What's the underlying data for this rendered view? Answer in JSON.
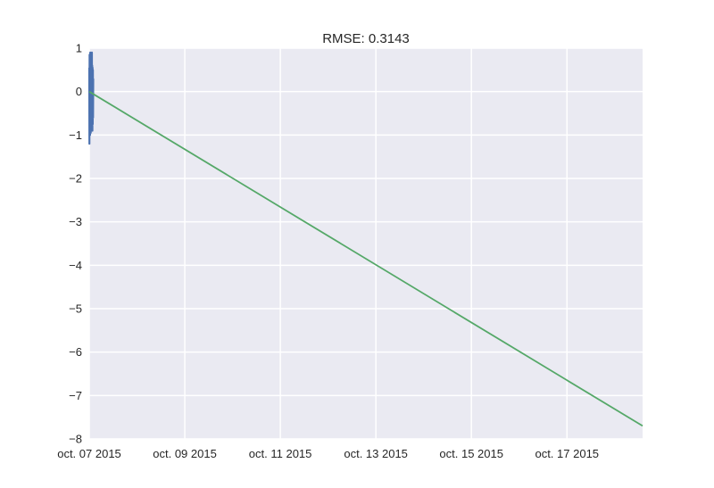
{
  "chart_data": {
    "type": "line",
    "title": "RMSE: 0.3143",
    "xlabel": "",
    "ylabel": "",
    "xlim": [
      "2015-10-07",
      "2015-10-18T14:00"
    ],
    "ylim": [
      -8,
      1
    ],
    "grid": true,
    "x_ticks": [
      {
        "date": "2015-10-07",
        "label": "oct. 07 2015"
      },
      {
        "date": "2015-10-09",
        "label": "oct. 09 2015"
      },
      {
        "date": "2015-10-11",
        "label": "oct. 11 2015"
      },
      {
        "date": "2015-10-13",
        "label": "oct. 13 2015"
      },
      {
        "date": "2015-10-15",
        "label": "oct. 15 2015"
      },
      {
        "date": "2015-10-17",
        "label": "oct. 17 2015"
      }
    ],
    "y_ticks": [
      {
        "value": 1,
        "label": "1"
      },
      {
        "value": 0,
        "label": "0"
      },
      {
        "value": -1,
        "label": "−1"
      },
      {
        "value": -2,
        "label": "−2"
      },
      {
        "value": -3,
        "label": "−3"
      },
      {
        "value": -4,
        "label": "−4"
      },
      {
        "value": -5,
        "label": "−5"
      },
      {
        "value": -6,
        "label": "−6"
      },
      {
        "value": -7,
        "label": "−7"
      },
      {
        "value": -8,
        "label": "−8"
      }
    ],
    "series": [
      {
        "color": "#4c72b0",
        "x": [
          "2015-10-07T00:00",
          "2015-10-07T00:05",
          "2015-10-07T00:10",
          "2015-10-07T00:15",
          "2015-10-07T00:20",
          "2015-10-07T00:25",
          "2015-10-07T00:30",
          "2015-10-07T00:35",
          "2015-10-07T00:40",
          "2015-10-07T00:45",
          "2015-10-07T00:50",
          "2015-10-07T00:55",
          "2015-10-07T01:00",
          "2015-10-07T01:05",
          "2015-10-07T01:10",
          "2015-10-07T01:15",
          "2015-10-07T01:20",
          "2015-10-07T01:25",
          "2015-10-07T01:30",
          "2015-10-07T01:35",
          "2015-10-07T01:40",
          "2015-10-07T01:45",
          "2015-10-07T01:50",
          "2015-10-07T01:55",
          "2015-10-07T02:00"
        ],
        "y": [
          0.55,
          -1.2,
          0.85,
          -0.9,
          0.7,
          -1.0,
          0.9,
          -0.6,
          0.6,
          -0.95,
          0.8,
          -0.5,
          0.5,
          -0.85,
          0.75,
          -0.7,
          0.9,
          -0.8,
          0.6,
          -0.9,
          0.55,
          -0.75,
          0.5,
          -0.6,
          0.3
        ]
      },
      {
        "color": "#55a868",
        "x": [
          "2015-10-07",
          "2015-10-18T14:00"
        ],
        "y": [
          0.0,
          -7.7
        ]
      }
    ]
  }
}
